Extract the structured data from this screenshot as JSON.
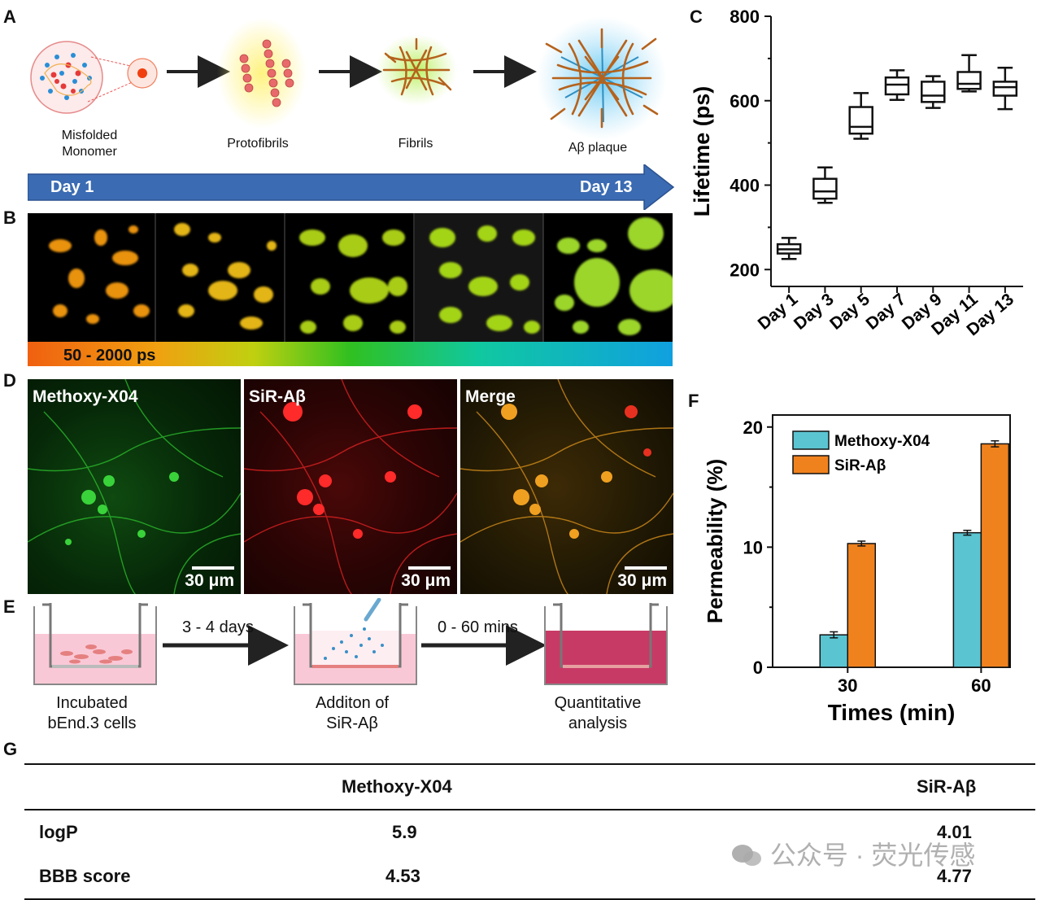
{
  "panels": {
    "a": "A",
    "b": "B",
    "c": "C",
    "d": "D",
    "e": "E",
    "f": "F",
    "g": "G"
  },
  "panel_a": {
    "stages": [
      "Misfolded\nMonomer",
      "Protofibrils",
      "Fibrils",
      "Aβ plaque"
    ],
    "timeline_start": "Day 1",
    "timeline_end": "Day 13"
  },
  "panel_b": {
    "colorbar_label": "50 - 2000 ps"
  },
  "panel_d": {
    "images": [
      {
        "title": "Methoxy-X04",
        "scale": "30 μm",
        "color": "#1fa51f"
      },
      {
        "title": "SiR-Aβ",
        "scale": "30 μm",
        "color": "#e01010"
      },
      {
        "title": "Merge",
        "scale": "30 μm",
        "color": "#d88a12"
      }
    ]
  },
  "panel_e": {
    "steps": [
      "Incubated\nbEnd.3 cells",
      "Additon of\nSiR-Aβ",
      "Quantitative\nanalysis"
    ],
    "arrows": [
      "3 - 4 days",
      "0 - 60 mins"
    ]
  },
  "chart_data": [
    {
      "panel": "C",
      "type": "box",
      "ylabel": "Lifetime (ps)",
      "xlabel": "",
      "ylim": [
        160,
        800
      ],
      "yticks": [
        200,
        400,
        600,
        800
      ],
      "categories": [
        "Day 1",
        "Day 3",
        "Day 5",
        "Day 7",
        "Day 9",
        "Day 11",
        "Day 13"
      ],
      "boxes": [
        {
          "min": 225,
          "q1": 238,
          "median": 248,
          "q3": 260,
          "max": 275
        },
        {
          "min": 358,
          "q1": 368,
          "median": 385,
          "q3": 415,
          "max": 442
        },
        {
          "min": 510,
          "q1": 522,
          "median": 538,
          "q3": 585,
          "max": 618
        },
        {
          "min": 602,
          "q1": 615,
          "median": 638,
          "q3": 655,
          "max": 672
        },
        {
          "min": 583,
          "q1": 597,
          "median": 612,
          "q3": 645,
          "max": 658
        },
        {
          "min": 622,
          "q1": 628,
          "median": 640,
          "q3": 668,
          "max": 708
        },
        {
          "min": 580,
          "q1": 612,
          "median": 632,
          "q3": 645,
          "max": 678
        }
      ]
    },
    {
      "panel": "F",
      "type": "bar",
      "ylabel": "Permeability (%)",
      "xlabel": "Times (min)",
      "ylim": [
        0,
        21
      ],
      "yticks": [
        0,
        10,
        20
      ],
      "categories": [
        "30",
        "60"
      ],
      "series": [
        {
          "name": "Methoxy-X04",
          "values": [
            2.7,
            11.2
          ],
          "errors": [
            0.25,
            0.2
          ],
          "color": "#5bc4d1"
        },
        {
          "name": "SiR-Aβ",
          "values": [
            10.3,
            18.6
          ],
          "errors": [
            0.2,
            0.25
          ],
          "color": "#f0821e"
        }
      ],
      "legend_position": "top-left"
    }
  ],
  "table_g": {
    "headers": [
      "",
      "Methoxy-X04",
      "SiR-Aβ"
    ],
    "rows": [
      [
        "logP",
        "5.9",
        "4.01"
      ],
      [
        "BBB score",
        "4.53",
        "4.77"
      ]
    ]
  },
  "watermark": "公众号 · 荧光传感"
}
